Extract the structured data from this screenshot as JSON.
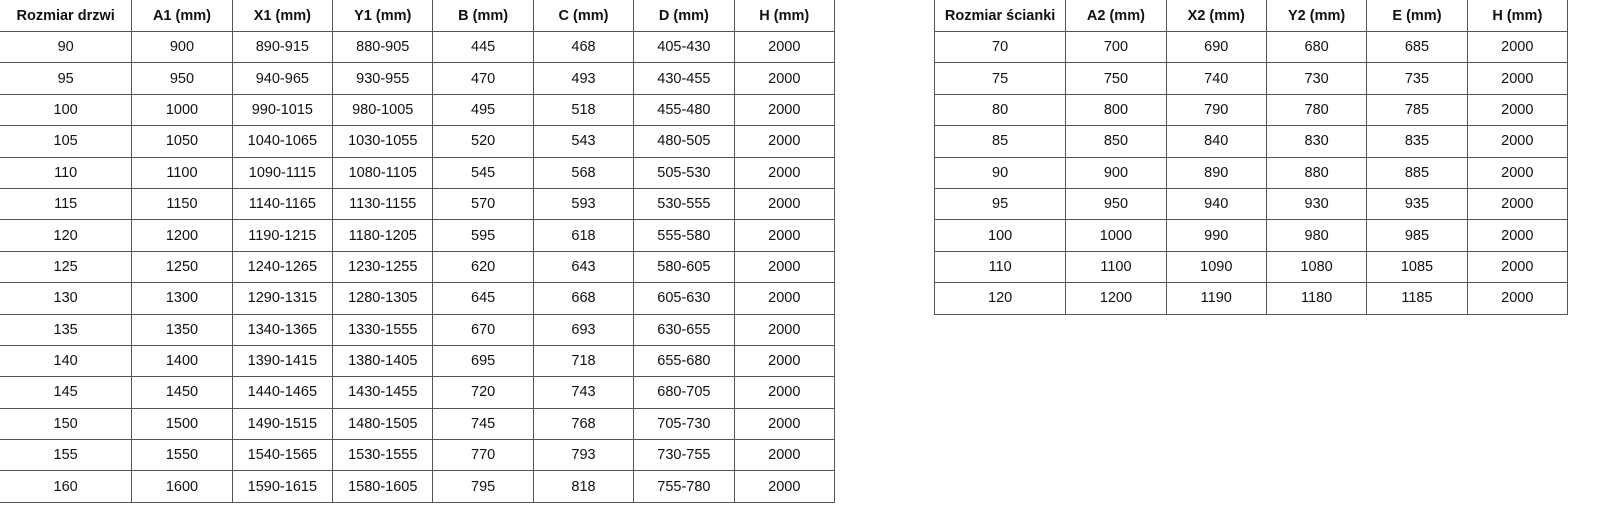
{
  "doors_table": {
    "headers": [
      "Rozmiar drzwi",
      "A1 (mm)",
      "X1 (mm)",
      "Y1 (mm)",
      "B (mm)",
      "C (mm)",
      "D (mm)",
      "H (mm)"
    ],
    "rows": [
      [
        "90",
        "900",
        "890-915",
        "880-905",
        "445",
        "468",
        "405-430",
        "2000"
      ],
      [
        "95",
        "950",
        "940-965",
        "930-955",
        "470",
        "493",
        "430-455",
        "2000"
      ],
      [
        "100",
        "1000",
        "990-1015",
        "980-1005",
        "495",
        "518",
        "455-480",
        "2000"
      ],
      [
        "105",
        "1050",
        "1040-1065",
        "1030-1055",
        "520",
        "543",
        "480-505",
        "2000"
      ],
      [
        "110",
        "1100",
        "1090-1115",
        "1080-1105",
        "545",
        "568",
        "505-530",
        "2000"
      ],
      [
        "115",
        "1150",
        "1140-1165",
        "1130-1155",
        "570",
        "593",
        "530-555",
        "2000"
      ],
      [
        "120",
        "1200",
        "1190-1215",
        "1180-1205",
        "595",
        "618",
        "555-580",
        "2000"
      ],
      [
        "125",
        "1250",
        "1240-1265",
        "1230-1255",
        "620",
        "643",
        "580-605",
        "2000"
      ],
      [
        "130",
        "1300",
        "1290-1315",
        "1280-1305",
        "645",
        "668",
        "605-630",
        "2000"
      ],
      [
        "135",
        "1350",
        "1340-1365",
        "1330-1555",
        "670",
        "693",
        "630-655",
        "2000"
      ],
      [
        "140",
        "1400",
        "1390-1415",
        "1380-1405",
        "695",
        "718",
        "655-680",
        "2000"
      ],
      [
        "145",
        "1450",
        "1440-1465",
        "1430-1455",
        "720",
        "743",
        "680-705",
        "2000"
      ],
      [
        "150",
        "1500",
        "1490-1515",
        "1480-1505",
        "745",
        "768",
        "705-730",
        "2000"
      ],
      [
        "155",
        "1550",
        "1540-1565",
        "1530-1555",
        "770",
        "793",
        "730-755",
        "2000"
      ],
      [
        "160",
        "1600",
        "1590-1615",
        "1580-1605",
        "795",
        "818",
        "755-780",
        "2000"
      ]
    ]
  },
  "wall_table": {
    "headers": [
      "Rozmiar ścianki",
      "A2 (mm)",
      "X2 (mm)",
      "Y2 (mm)",
      "E (mm)",
      "H (mm)"
    ],
    "rows": [
      [
        "70",
        "700",
        "690",
        "680",
        "685",
        "2000"
      ],
      [
        "75",
        "750",
        "740",
        "730",
        "735",
        "2000"
      ],
      [
        "80",
        "800",
        "790",
        "780",
        "785",
        "2000"
      ],
      [
        "85",
        "850",
        "840",
        "830",
        "835",
        "2000"
      ],
      [
        "90",
        "900",
        "890",
        "880",
        "885",
        "2000"
      ],
      [
        "95",
        "950",
        "940",
        "930",
        "935",
        "2000"
      ],
      [
        "100",
        "1000",
        "990",
        "980",
        "985",
        "2000"
      ],
      [
        "110",
        "1100",
        "1090",
        "1080",
        "1085",
        "2000"
      ],
      [
        "120",
        "1200",
        "1190",
        "1180",
        "1185",
        "2000"
      ]
    ]
  }
}
